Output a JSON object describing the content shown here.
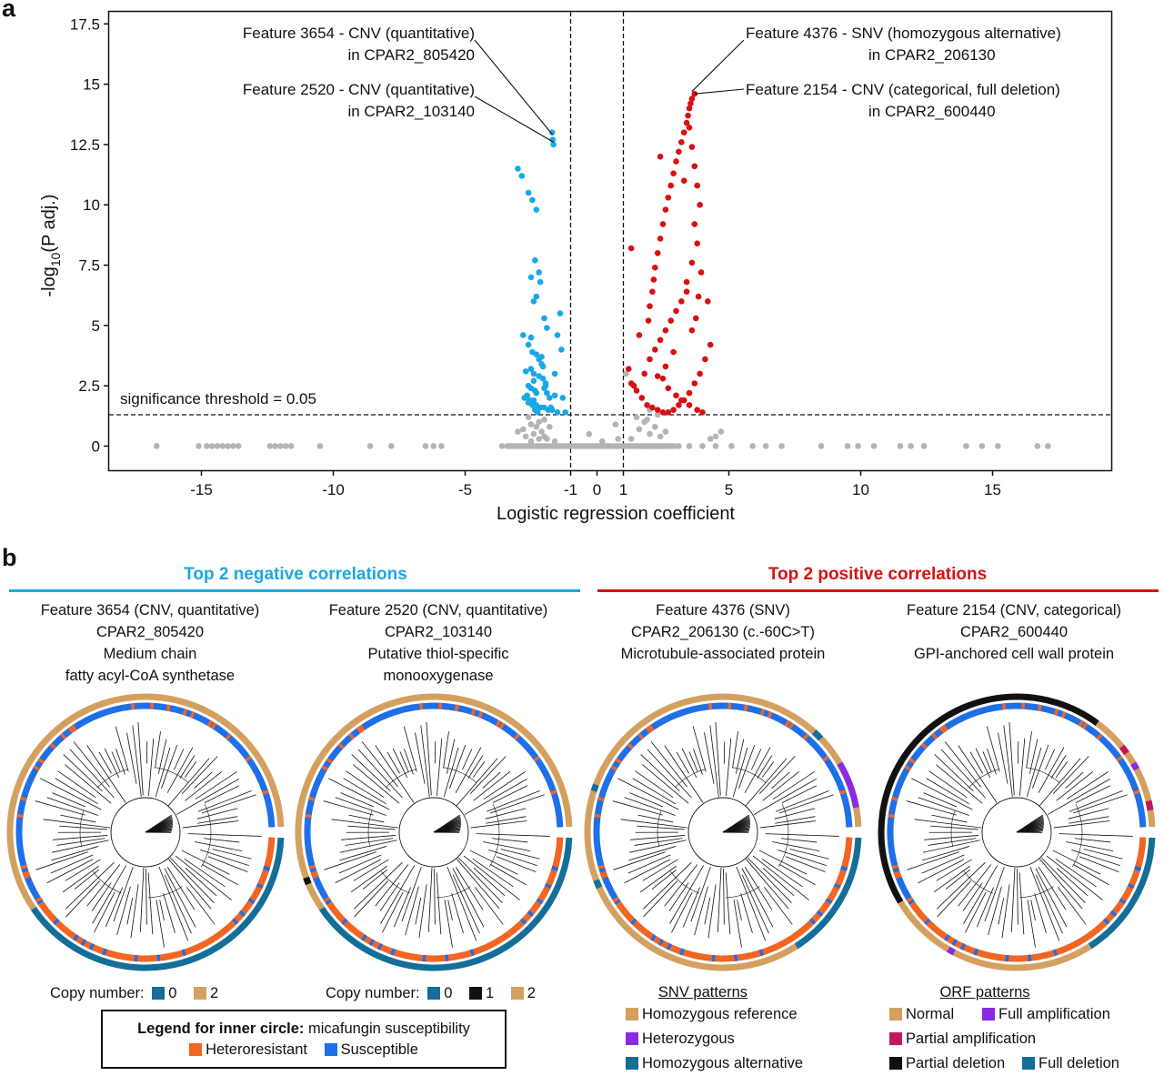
{
  "panel_a_letter": "a",
  "panel_b_letter": "b",
  "chart_data": {
    "type": "scatter",
    "title": "",
    "xlabel": "Logistic regression coefficient",
    "ylabel": "-log10(P adj.)",
    "ylabel_parts": {
      "pre": "-log",
      "sub": "10",
      "post": "(P adj.)"
    },
    "xlim": [
      -18.5,
      19.5
    ],
    "ylim": [
      -1,
      18
    ],
    "xticks": [
      -15,
      -10,
      -5,
      -1,
      0,
      1,
      5,
      10,
      15
    ],
    "yticks": [
      0,
      2.5,
      5,
      7.5,
      10,
      12.5,
      15,
      17.5
    ],
    "xtick_labels": [
      "-15",
      "-10",
      "-5",
      "-1",
      "0",
      "1",
      "5",
      "10",
      "15"
    ],
    "ytick_labels": [
      "0",
      "2.5",
      "5",
      "7.5",
      "10",
      "12.5",
      "15",
      "17.5"
    ],
    "vlines": [
      -1,
      1
    ],
    "hline": 1.3,
    "threshold_label": "significance threshold = 0.05",
    "grid": false,
    "colors": {
      "negative": "#1aa7e8",
      "positive": "#d91010",
      "nonsig": "#b4b4b4"
    },
    "series": [
      {
        "name": "",
        "color": "#b4b4b4",
        "x": [
          -16.7,
          -15.1,
          -14.8,
          -14.6,
          -14.4,
          -14.2,
          -14.0,
          -13.8,
          -13.6,
          -12.4,
          -12.2,
          -12.0,
          -11.8,
          -11.6,
          -10.5,
          -8.6,
          -7.8,
          -6.5,
          -6.2,
          -5.9,
          -3.6,
          -3.2,
          -2.6,
          -2.3,
          -2.0,
          -1.7,
          -1.4,
          -1.1,
          -0.8,
          -0.4,
          0,
          0.4,
          0.8,
          1.2,
          1.5,
          1.7,
          1.9,
          2.1,
          2.3,
          2.5,
          2.8,
          3.1,
          3.5,
          4.0,
          4.5,
          5.1,
          5.9,
          6.4,
          7.0,
          8.5,
          9.5,
          9.9,
          10.5,
          11.5,
          11.9,
          12.4,
          14.0,
          14.6,
          15.2,
          16.7,
          17.1,
          -2.5,
          -2.2,
          -1.9,
          -1.6,
          -2.4,
          -2.1,
          -2.7,
          -3.0,
          -1.8,
          -2.2,
          -2.5,
          0.2,
          -0.3,
          0.8,
          1.3,
          1.6,
          2.0,
          2.4,
          1.8,
          2.2,
          1.5,
          1.9,
          2.6,
          0.7,
          -2.0,
          -2.3,
          4.3,
          4.5,
          4.7,
          -2.6,
          -2.8,
          -2.0,
          1.1,
          2.0,
          2.3
        ],
        "y": [
          0,
          0,
          0,
          0,
          0,
          0,
          0,
          0,
          0,
          0,
          0,
          0,
          0,
          0,
          0,
          0,
          0,
          0,
          0,
          0,
          0,
          0,
          0,
          0,
          0,
          0,
          0,
          0,
          0,
          0,
          0,
          0,
          0,
          0,
          0,
          0,
          0,
          0,
          0,
          0,
          0,
          0,
          0,
          0,
          0,
          0,
          0,
          0,
          0,
          0,
          0,
          0,
          0,
          0,
          0,
          0,
          0,
          0,
          0,
          0,
          0,
          0.2,
          0.3,
          0.3,
          0.2,
          0.5,
          0.6,
          0.4,
          0.6,
          0.8,
          1.0,
          0.9,
          0.2,
          0.5,
          0.3,
          0.3,
          0.7,
          0.5,
          0.4,
          1.0,
          0.8,
          1.2,
          1.1,
          0.6,
          0.9,
          1.1,
          0.8,
          0.3,
          0.4,
          0.6,
          1.2,
          0.7,
          0.4,
          3.0,
          1.5,
          1.3
        ]
      },
      {
        "name": "",
        "color": "#1aa7e8",
        "x": [
          -1.7,
          -1.68,
          -1.65,
          -3.0,
          -2.85,
          -2.6,
          -2.45,
          -2.3,
          -2.35,
          -2.2,
          -2.5,
          -2.15,
          -2.3,
          -2.4,
          -2.0,
          -1.9,
          -1.4,
          -1.5,
          -2.5,
          -2.6,
          -2.45,
          -2.3,
          -2.2,
          -2.1,
          -2.7,
          -2.4,
          -2.05,
          -1.95,
          -2.6,
          -2.5,
          -2.35,
          -2.3,
          -1.9,
          -1.6,
          -1.3,
          -2.75,
          -2.4,
          -2.6,
          -2.3,
          -2.15,
          -2.0,
          -1.85,
          -1.7,
          -1.5,
          -1.2,
          -2.5,
          -2.4,
          -2.2,
          -2.05,
          -1.95,
          -2.65,
          -2.55,
          -2.45,
          -2.35,
          -2.25,
          -1.6,
          -1.35,
          -2.8,
          -2.1,
          -2.0,
          -1.8,
          -1.75
        ],
        "y": [
          13.0,
          12.7,
          12.5,
          11.5,
          11.2,
          10.5,
          10.2,
          9.8,
          7.7,
          7.2,
          7.0,
          6.8,
          6.2,
          6.0,
          5.3,
          4.9,
          5.5,
          4.6,
          4.5,
          4.2,
          3.9,
          3.8,
          3.6,
          3.4,
          3.1,
          3.0,
          2.8,
          2.6,
          2.5,
          2.4,
          2.3,
          2.2,
          2.2,
          2.1,
          2.0,
          2.0,
          1.9,
          1.8,
          1.7,
          1.6,
          1.6,
          1.5,
          1.5,
          1.4,
          1.4,
          3.2,
          2.7,
          2.9,
          3.3,
          2.5,
          2.1,
          1.9,
          1.7,
          1.5,
          1.4,
          3.0,
          4.0,
          4.6,
          3.7,
          2.4,
          2.0,
          1.6
        ]
      },
      {
        "name": "",
        "color": "#d91010",
        "x": [
          3.7,
          3.6,
          3.55,
          3.5,
          3.45,
          3.4,
          3.3,
          3.2,
          3.1,
          3.0,
          2.9,
          2.8,
          2.7,
          2.6,
          2.5,
          2.4,
          2.3,
          2.2,
          2.15,
          2.1,
          2.0,
          1.95,
          2.4,
          3.3,
          1.3,
          3.5,
          3.6,
          3.7,
          3.8,
          3.9,
          3.7,
          3.8,
          3.6,
          3.4,
          4.2,
          4.3,
          4.1,
          3.9,
          3.7,
          3.5,
          3.3,
          3.1,
          2.9,
          2.7,
          2.5,
          2.3,
          2.1,
          1.9,
          1.7,
          1.5,
          1.3,
          1.2,
          2.0,
          2.2,
          2.4,
          2.6,
          2.8,
          3.0,
          3.2,
          3.4,
          1.6,
          1.8,
          2.5,
          2.7,
          3.0,
          3.2,
          3.5,
          3.8,
          4.0,
          2.6,
          2.3,
          3.6,
          3.75,
          3.85,
          3.95,
          1.4,
          2.9
        ],
        "y": [
          14.6,
          14.4,
          14.2,
          14.0,
          13.7,
          13.4,
          13.0,
          12.6,
          12.2,
          11.8,
          11.3,
          10.8,
          10.3,
          9.8,
          9.2,
          8.6,
          8.0,
          7.4,
          6.9,
          6.4,
          5.8,
          5.2,
          12.0,
          11.0,
          8.2,
          13.2,
          12.4,
          11.6,
          10.8,
          10.0,
          9.2,
          8.4,
          7.6,
          6.8,
          6.0,
          4.2,
          3.6,
          3.0,
          2.6,
          2.2,
          1.9,
          1.7,
          1.5,
          1.4,
          1.4,
          1.5,
          1.6,
          1.7,
          2.0,
          2.3,
          2.6,
          3.2,
          3.6,
          4.0,
          4.4,
          4.8,
          5.2,
          5.6,
          6.0,
          6.4,
          4.6,
          3.0,
          2.8,
          2.4,
          2.1,
          1.9,
          1.7,
          1.5,
          1.4,
          3.3,
          2.9,
          4.8,
          5.3,
          6.2,
          7.2,
          2.5,
          3.9
        ]
      }
    ],
    "annotations": [
      {
        "id": "ann3654",
        "line1": "Feature 3654 - CNV (quantitative)",
        "line2": "in CPAR2_805420",
        "px": -1.68,
        "py": 12.9
      },
      {
        "id": "ann2520",
        "line1": "Feature 2520 - CNV (quantitative)",
        "line2": "in CPAR2_103140",
        "px": -1.65,
        "py": 12.6
      },
      {
        "id": "ann4376",
        "line1": "Feature 4376 - SNV (homozygous alternative)",
        "line2": "in CPAR2_206130",
        "px": 3.6,
        "py": 14.7
      },
      {
        "id": "ann2154",
        "line1": "Feature 2154 - CNV (categorical, full deletion)",
        "line2": "in CPAR2_600440",
        "px": 3.7,
        "py": 14.6
      }
    ]
  },
  "panel_b": {
    "neg_header": "Top 2 negative correlations",
    "pos_header": "Top 2 positive correlations",
    "colors": {
      "neg": "#1aa7e8",
      "pos": "#d91010",
      "tan": "#d4a05f",
      "teal": "#146e98",
      "black": "#111111",
      "purple": "#8a2be2",
      "magenta": "#c2185b",
      "orange": "#f26522",
      "blue": "#1e6fe8"
    },
    "trees": [
      {
        "id": "t1",
        "title": [
          "Feature 3654 (CNV, quantitative)",
          "CPAR2_805420",
          "Medium chain",
          "fatty acyl-CoA synthetase"
        ]
      },
      {
        "id": "t2",
        "title": [
          "Feature 2520 (CNV, quantitative)",
          "CPAR2_103140",
          "Putative thiol-specific",
          "monooxygenase"
        ]
      },
      {
        "id": "t3",
        "title": [
          "Feature 4376 (SNV)",
          "CPAR2_206130 (c.-60C>T)",
          "Microtubule-associated protein",
          ""
        ]
      },
      {
        "id": "t4",
        "title": [
          "Feature 2154 (CNV, categorical)",
          "CPAR2_600440",
          "GPI-anchored cell wall protein",
          ""
        ]
      }
    ],
    "legend1": {
      "label": "Copy number:",
      "items": [
        "0",
        "2"
      ]
    },
    "legend2": {
      "label": "Copy number:",
      "items": [
        "0",
        "1",
        "2"
      ]
    },
    "inner_legend": {
      "bold": "Legend for inner circle:",
      "rest": " micafungin susceptibility",
      "items": [
        "Heteroresistant",
        "Susceptible"
      ]
    },
    "snv_legend": {
      "title": "SNV patterns",
      "items": [
        "Homozygous reference",
        "Heterozygous",
        "Homozygous alternative"
      ]
    },
    "orf_legend": {
      "title": "ORF patterns",
      "items": [
        "Normal",
        "Full amplification",
        "Partial amplification",
        "Partial deletion",
        "Full deletion"
      ]
    }
  }
}
